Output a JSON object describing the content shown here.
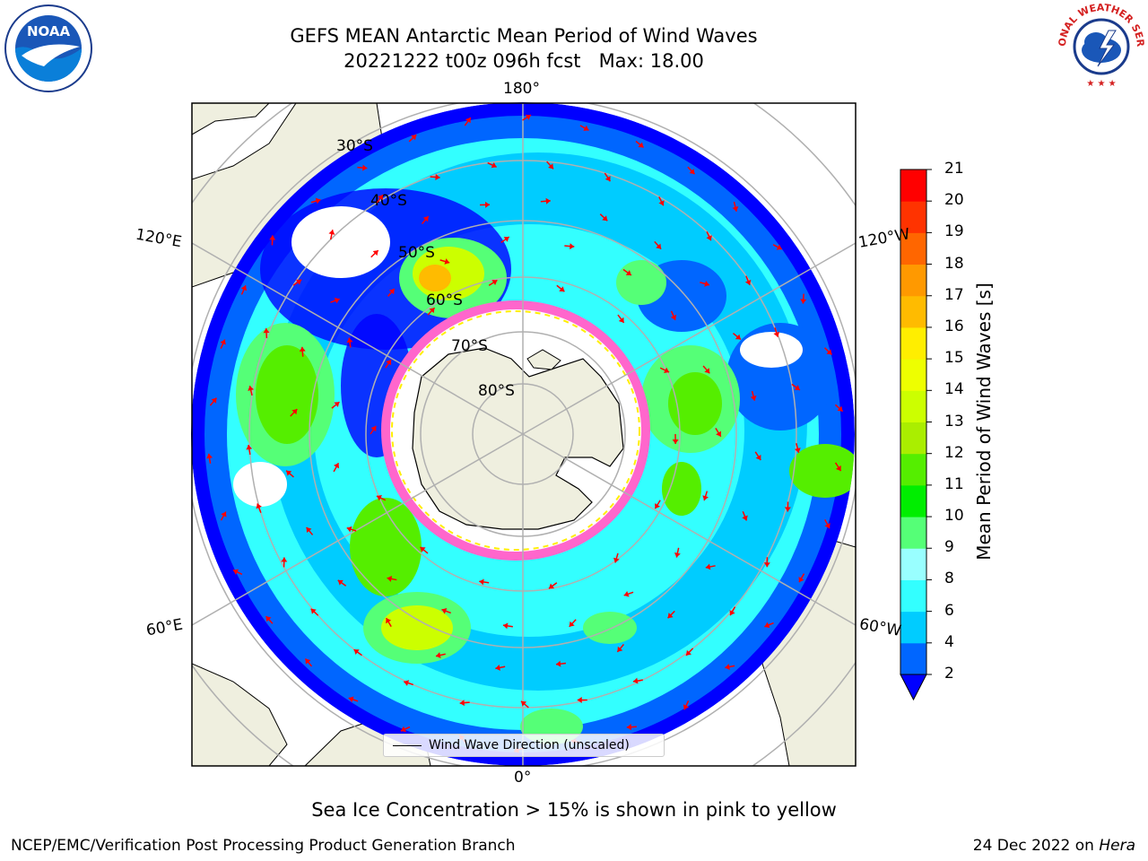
{
  "title": {
    "line1": "GEFS MEAN Antarctic Mean Period of Wind Waves",
    "line2": "20221222 t00z 096h fcst   Max: 18.00"
  },
  "longitude_labels": {
    "top": "180°",
    "bottom": "0°",
    "upper_left": "120°E",
    "lower_left": "60°E",
    "upper_right": "120°W",
    "lower_right": "60°W"
  },
  "latitude_labels": [
    "30°S",
    "40°S",
    "50°S",
    "60°S",
    "70°S",
    "80°S"
  ],
  "legend": {
    "label": "Wind Wave Direction (unscaled)"
  },
  "colorbar": {
    "label": "Mean Period of Wind Waves [s]",
    "ticks": [
      "2",
      "4",
      "6",
      "8",
      "9",
      "10",
      "11",
      "12",
      "13",
      "14",
      "15",
      "16",
      "17",
      "18",
      "19",
      "20",
      "21"
    ],
    "colors": [
      "#0066ff",
      "#00ccff",
      "#33ffff",
      "#99ffff",
      "#55ff77",
      "#00ee00",
      "#55ee00",
      "#aaee00",
      "#ccff00",
      "#eeff00",
      "#ffee00",
      "#ffbb00",
      "#ff9900",
      "#ff6600",
      "#ff3300",
      "#ff0000"
    ],
    "underflow_color": "#0000ff"
  },
  "footnote": "Sea Ice Concentration > 15% is shown in pink to yellow",
  "credit": "NCEP/EMC/Verification Post Processing Product Generation Branch",
  "date": "24 Dec 2022 on",
  "host": "Hera",
  "logos": {
    "noaa_text": "NOAA",
    "nws_text": "NATIONAL WEATHER SERVICE"
  },
  "colors": {
    "land": "#efefdf",
    "sea_ice": "#ff66cc",
    "arrow": "#ff0000",
    "grid": "#b0b0b0"
  }
}
